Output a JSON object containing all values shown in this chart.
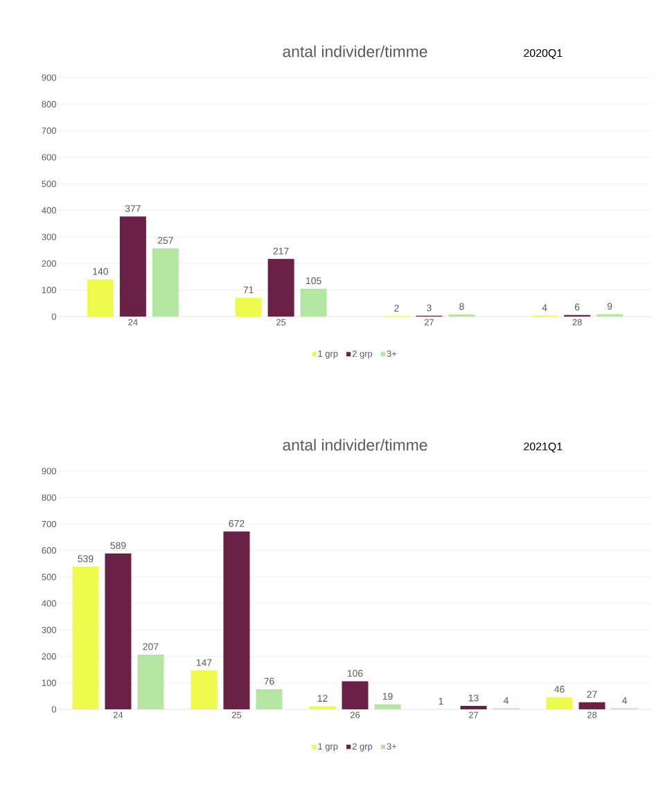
{
  "chart_data": [
    {
      "type": "bar",
      "title": "antal individer/timme",
      "annotations": [
        "2020Q1"
      ],
      "categories": [
        "24",
        "25",
        "27",
        "28"
      ],
      "series": [
        {
          "name": "1 grp",
          "color": "#eefb4c",
          "values": [
            140,
            71,
            2,
            4
          ]
        },
        {
          "name": "2 grp",
          "color": "#6b2046",
          "values": [
            377,
            217,
            3,
            6
          ]
        },
        {
          "name": "3+",
          "color": "#b3e6a1",
          "values": [
            257,
            105,
            8,
            9
          ]
        }
      ],
      "ylim": [
        0,
        900
      ],
      "yticks": [
        0,
        100,
        200,
        300,
        400,
        500,
        600,
        700,
        800,
        900
      ],
      "grid": "y",
      "legend": "bottom",
      "data_labels": true
    },
    {
      "type": "bar",
      "title": "antal individer/timme",
      "annotations": [
        "2021Q1"
      ],
      "categories": [
        "24",
        "25",
        "26",
        "27",
        "28"
      ],
      "series": [
        {
          "name": "1 grp",
          "color": "#eefb4c",
          "values": [
            539,
            147,
            12,
            1,
            46
          ]
        },
        {
          "name": "2 grp",
          "color": "#6b2046",
          "values": [
            589,
            672,
            106,
            13,
            27
          ]
        },
        {
          "name": "3+",
          "color": "#b3e6a1",
          "values": [
            207,
            76,
            19,
            4,
            4
          ]
        }
      ],
      "ylim": [
        0,
        900
      ],
      "yticks": [
        0,
        100,
        200,
        300,
        400,
        500,
        600,
        700,
        800,
        900
      ],
      "grid": "y",
      "legend": "bottom",
      "data_labels": true
    }
  ]
}
